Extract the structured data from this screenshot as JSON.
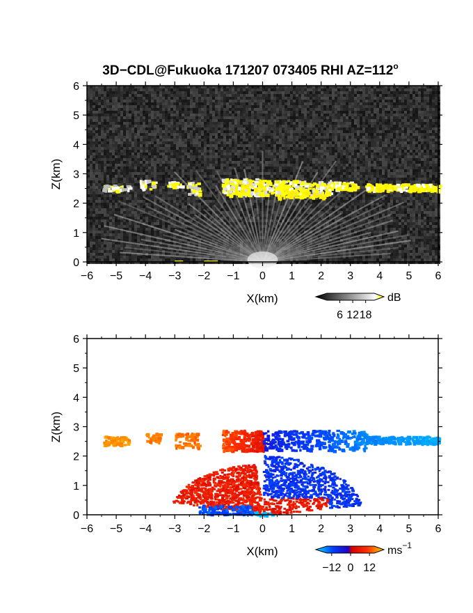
{
  "chart_data": [
    {
      "type": "heatmap",
      "title": "3D−CDL@Fukuoka 171207 073405 RHI AZ=112",
      "title_superscript": "o",
      "xlabel": "X(km)",
      "ylabel": "Z(km)",
      "xlim": [
        -6,
        6
      ],
      "ylim": [
        0,
        6
      ],
      "x_ticks": [
        "−6",
        "−5",
        "−4",
        "−3",
        "−2",
        "−1",
        "0",
        "1",
        "2",
        "3",
        "4",
        "5",
        "6"
      ],
      "y_ticks": [
        "0",
        "1",
        "2",
        "3",
        "4",
        "5",
        "6"
      ],
      "background": "noise",
      "colorbar": {
        "unit": "dB",
        "ticks": [
          "6",
          "12",
          "18"
        ],
        "tick_values": [
          6,
          12,
          18
        ],
        "range": [
          0,
          22
        ],
        "colors": [
          "#000000",
          "#ffffff",
          "#ffff00"
        ]
      },
      "layers": [
        {
          "name": "cloud",
          "z_range": [
            2.2,
            2.9
          ],
          "x_range": [
            -5.5,
            6
          ],
          "value": 20
        },
        {
          "name": "beams",
          "x_range": [
            -3,
            3
          ],
          "z_range": [
            0,
            2.2
          ],
          "value": 10
        }
      ]
    },
    {
      "type": "heatmap",
      "xlabel": "X(km)",
      "ylabel": "Z(km)",
      "xlim": [
        -6,
        6
      ],
      "ylim": [
        0,
        6
      ],
      "x_ticks": [
        "−6",
        "−5",
        "−4",
        "−3",
        "−2",
        "−1",
        "0",
        "1",
        "2",
        "3",
        "4",
        "5",
        "6"
      ],
      "y_ticks": [
        "0",
        "1",
        "2",
        "3",
        "4",
        "5",
        "6"
      ],
      "colorbar": {
        "unit": "ms",
        "unit_superscript": "−1",
        "ticks": [
          "−12",
          "0",
          "12"
        ],
        "tick_values": [
          -12,
          0,
          12
        ],
        "range": [
          -15,
          15
        ],
        "colors": [
          "#00e5ff",
          "#0000ff",
          "#ff0000",
          "#ffd000"
        ]
      },
      "layers": [
        {
          "name": "cloud-west",
          "x_range": [
            -5.5,
            -1.5
          ],
          "z_range": [
            2.3,
            2.8
          ],
          "value": 10
        },
        {
          "name": "cloud-near-west",
          "x_range": [
            -1.5,
            0
          ],
          "z_range": [
            2.2,
            2.9
          ],
          "value": 4
        },
        {
          "name": "cloud-near-east",
          "x_range": [
            0,
            3.5
          ],
          "z_range": [
            2.2,
            2.9
          ],
          "value": -5
        },
        {
          "name": "cloud-east",
          "x_range": [
            3.5,
            6
          ],
          "z_range": [
            2.4,
            2.7
          ],
          "value": -12
        },
        {
          "name": "low-west",
          "x_range": [
            -3,
            0
          ],
          "z_range": [
            0,
            2.2
          ],
          "value": 3
        },
        {
          "name": "low-east",
          "x_range": [
            0,
            3.2
          ],
          "z_range": [
            0,
            2.2
          ],
          "value": -4
        }
      ]
    }
  ]
}
